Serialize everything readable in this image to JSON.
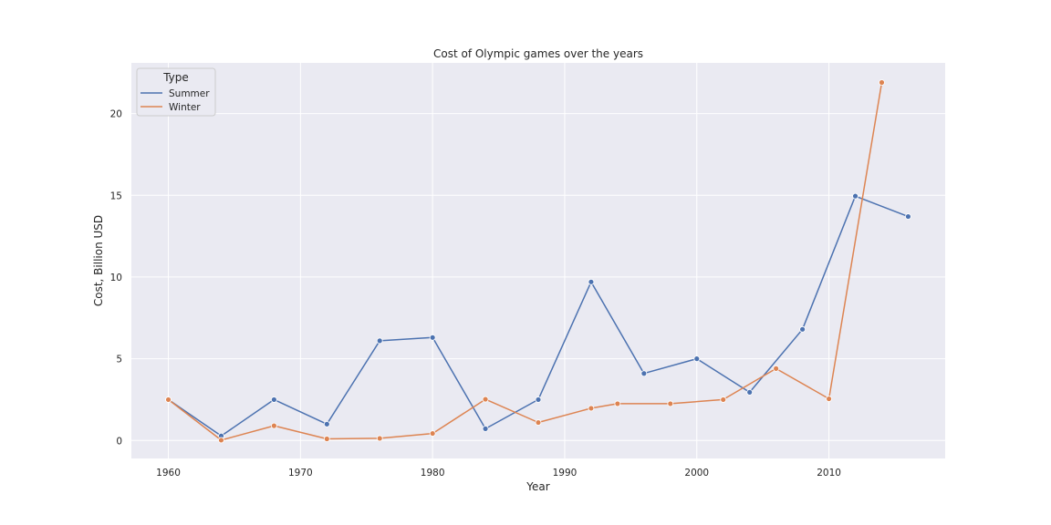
{
  "chart_data": {
    "type": "line",
    "title": "Cost of Olympic games over the years",
    "xlabel": "Year",
    "ylabel": "Cost, Billion USD",
    "xlim": [
      1957.2,
      2018.8
    ],
    "ylim": [
      -1.1,
      23.1
    ],
    "xticks": [
      1960,
      1970,
      1980,
      1990,
      2000,
      2010
    ],
    "yticks": [
      0,
      5,
      10,
      15,
      20
    ],
    "grid": true,
    "legend": {
      "title": "Type",
      "placement": "top-left"
    },
    "colors": {
      "background": "#eaeaf2",
      "grid": "#ffffff",
      "Summer": "#4c72b0",
      "Winter": "#dd8452"
    },
    "series": [
      {
        "name": "Summer",
        "x": [
          1960,
          1964,
          1968,
          1972,
          1976,
          1980,
          1984,
          1988,
          1992,
          1996,
          2000,
          2004,
          2008,
          2012,
          2016
        ],
        "values": [
          2.5,
          0.28,
          2.5,
          1.0,
          6.1,
          6.3,
          0.72,
          2.5,
          9.7,
          4.1,
          5.0,
          2.95,
          6.8,
          14.95,
          13.7
        ]
      },
      {
        "name": "Winter",
        "x": [
          1960,
          1964,
          1968,
          1972,
          1976,
          1980,
          1984,
          1988,
          1992,
          1994,
          1998,
          2002,
          2006,
          2010,
          2014
        ],
        "values": [
          2.5,
          0.02,
          0.9,
          0.1,
          0.13,
          0.43,
          2.52,
          1.1,
          1.97,
          2.25,
          2.25,
          2.5,
          4.4,
          2.55,
          21.9
        ]
      }
    ]
  }
}
